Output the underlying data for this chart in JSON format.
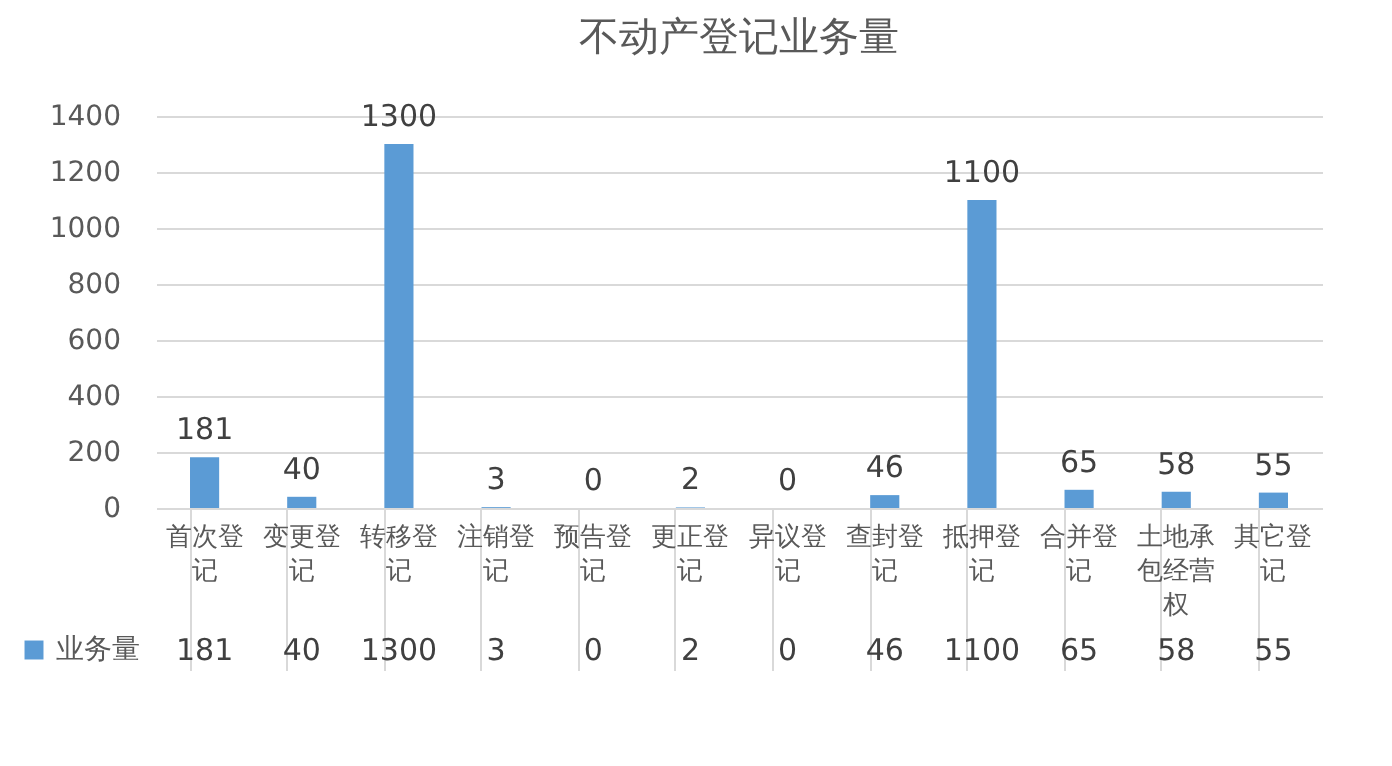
{
  "chart_data": {
    "type": "bar",
    "title": "不动产登记业务量",
    "categories": [
      "首次登记",
      "变更登记",
      "转移登记",
      "注销登记",
      "预告登记",
      "更正登记",
      "异议登记",
      "查封登记",
      "抵押登记",
      "合并登记",
      "土地承包经营权",
      "其它登记"
    ],
    "series": [
      {
        "name": "业务量",
        "color": "#5b9bd5",
        "values": [
          181,
          40,
          1300,
          3,
          0,
          2,
          0,
          46,
          1100,
          65,
          58,
          55
        ],
        "value_labels": [
          "181",
          "40",
          "1300",
          "3",
          "0",
          "2",
          "0",
          "46",
          "1100",
          "65",
          "58",
          "55"
        ]
      }
    ],
    "ylim": [
      0,
      1400
    ],
    "yticks": [
      0,
      200,
      400,
      600,
      800,
      1000,
      1200,
      1400
    ],
    "grid": "y",
    "data_labels": true,
    "legend": "bottom left"
  }
}
